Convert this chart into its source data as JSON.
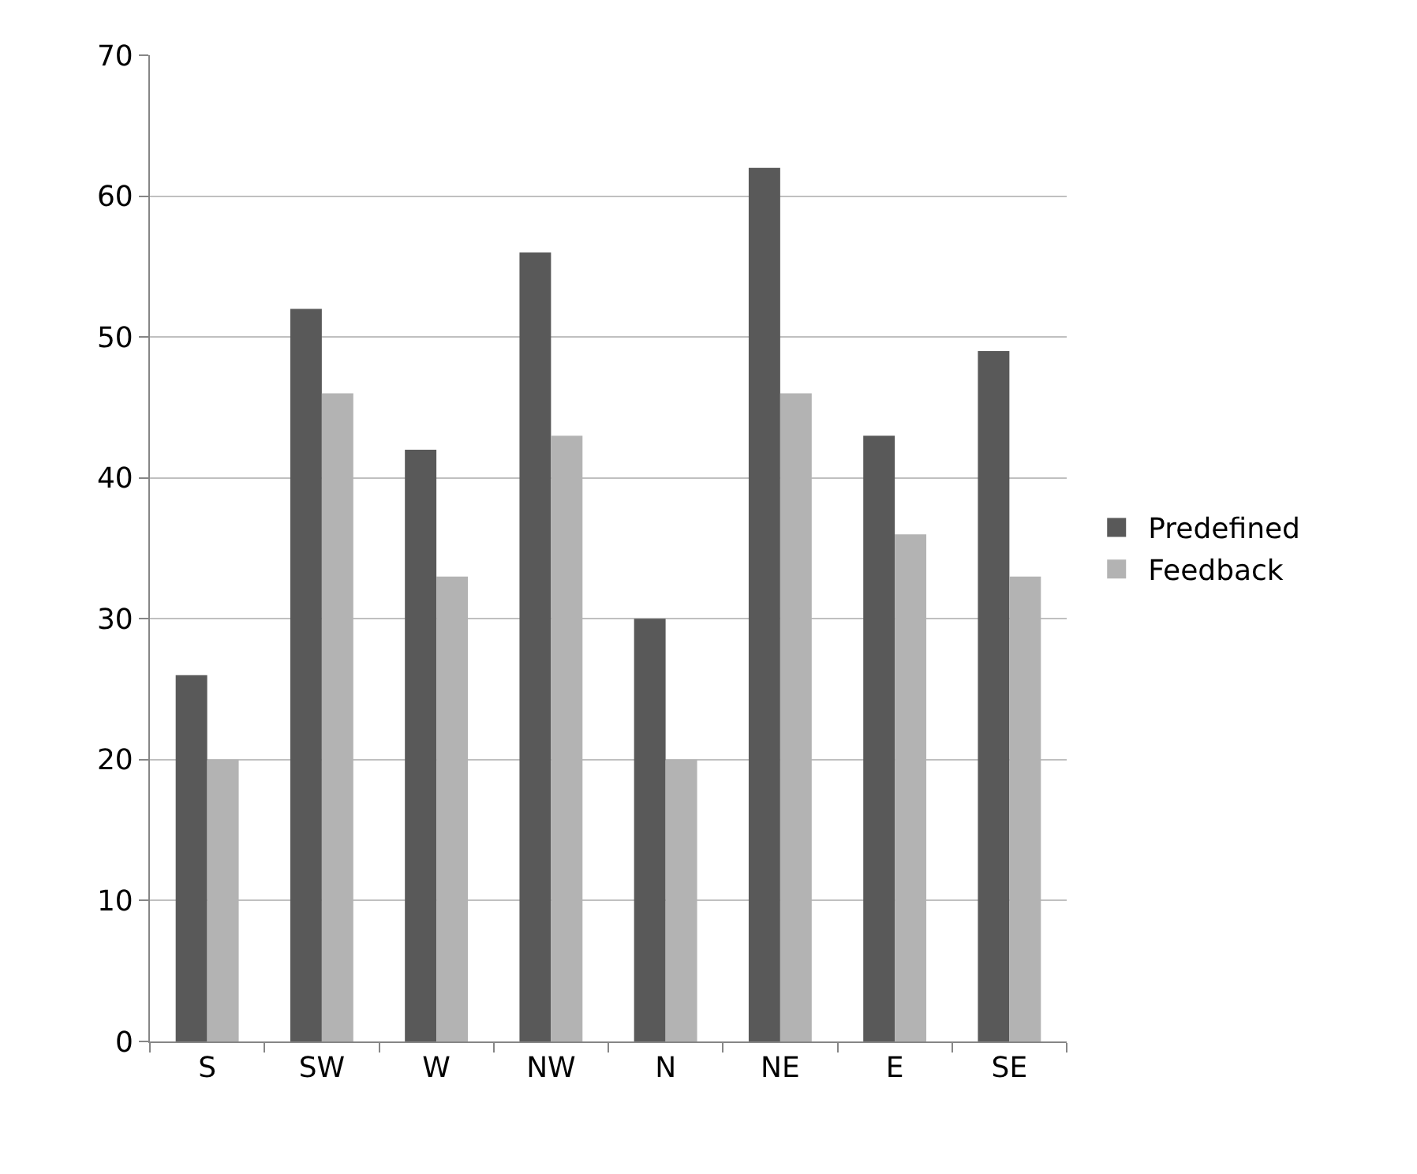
{
  "chart_data": {
    "type": "bar",
    "categories": [
      "S",
      "SW",
      "W",
      "NW",
      "N",
      "NE",
      "E",
      "SE"
    ],
    "series": [
      {
        "name": "Predefined",
        "color": "#595959",
        "values": [
          26,
          52,
          42,
          56,
          30,
          62,
          43,
          49
        ]
      },
      {
        "name": "Feedback",
        "color": "#b3b3b3",
        "values": [
          20,
          46,
          33,
          43,
          20,
          46,
          36,
          33
        ]
      }
    ],
    "ylim": [
      0,
      70
    ],
    "yticks": [
      0,
      10,
      20,
      30,
      40,
      50,
      60,
      70
    ],
    "grid": "y",
    "legend": "right"
  }
}
